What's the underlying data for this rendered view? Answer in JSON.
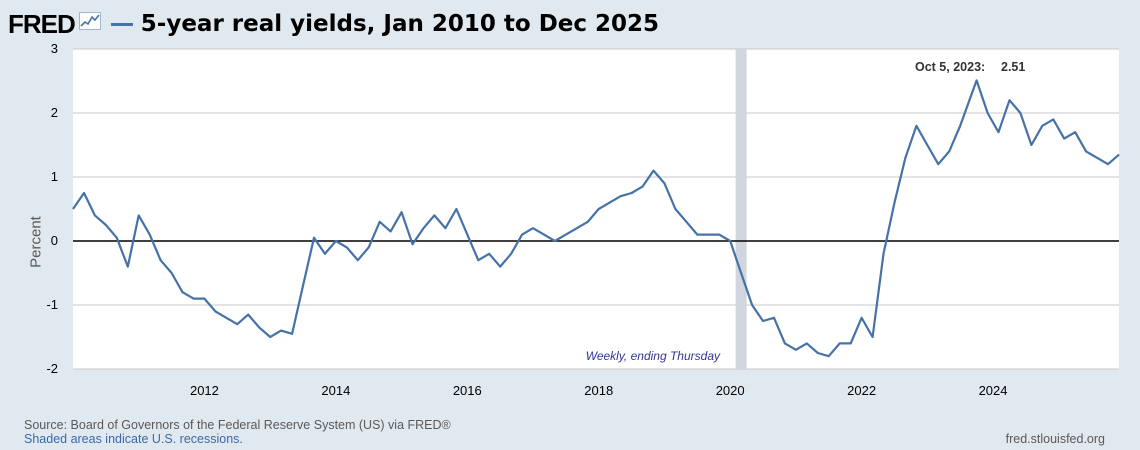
{
  "header": {
    "logo_text": "FRED",
    "title": "5-year real yields, Jan 2010 to Dec 2025"
  },
  "footer": {
    "source": "Source: Board of Governors of the Federal Reserve System (US) via FRED®",
    "recession_note": "Shaded areas indicate U.S. recessions.",
    "url": "fred.stlouisfed.org"
  },
  "colors": {
    "series": "#4572a7",
    "recession": "#cfd6de",
    "background": "#e1e9f0",
    "plot_background": "#ffffff",
    "gridline": "#c8c8c8",
    "zero_line": "#000000"
  },
  "chart_data": {
    "type": "line",
    "title": "5-year real yields, Jan 2010 to Dec 2025",
    "xlabel": "",
    "ylabel": "Percent",
    "xlim": [
      "2010-01",
      "2025-12"
    ],
    "ylim": [
      -2,
      3
    ],
    "x_ticks": [
      "2012",
      "2014",
      "2016",
      "2018",
      "2020",
      "2022",
      "2024"
    ],
    "y_ticks": [
      "-2",
      "-1",
      "0",
      "1",
      "2",
      "3"
    ],
    "grid": "horizontal",
    "recessions": [
      {
        "start": "2020-02",
        "end": "2020-04"
      }
    ],
    "frequency_note": "Weekly, ending Thursday",
    "annotation": {
      "date": "Oct 5, 2023:",
      "value": "2.51"
    },
    "series": [
      {
        "x": [
          "2010-01",
          "2010-03",
          "2010-05",
          "2010-07",
          "2010-09",
          "2010-11",
          "2011-01",
          "2011-03",
          "2011-05",
          "2011-07",
          "2011-09",
          "2011-11",
          "2012-01",
          "2012-03",
          "2012-05",
          "2012-07",
          "2012-09",
          "2012-11",
          "2013-01",
          "2013-03",
          "2013-05",
          "2013-07",
          "2013-09",
          "2013-11",
          "2014-01",
          "2014-03",
          "2014-05",
          "2014-07",
          "2014-09",
          "2014-11",
          "2015-01",
          "2015-03",
          "2015-05",
          "2015-07",
          "2015-09",
          "2015-11",
          "2016-01",
          "2016-03",
          "2016-05",
          "2016-07",
          "2016-09",
          "2016-11",
          "2017-01",
          "2017-03",
          "2017-05",
          "2017-07",
          "2017-09",
          "2017-11",
          "2018-01",
          "2018-03",
          "2018-05",
          "2018-07",
          "2018-09",
          "2018-11",
          "2019-01",
          "2019-03",
          "2019-05",
          "2019-07",
          "2019-09",
          "2019-11",
          "2020-01",
          "2020-03",
          "2020-05",
          "2020-07",
          "2020-09",
          "2020-11",
          "2021-01",
          "2021-03",
          "2021-05",
          "2021-07",
          "2021-09",
          "2021-11",
          "2022-01",
          "2022-03",
          "2022-05",
          "2022-07",
          "2022-09",
          "2022-11",
          "2023-01",
          "2023-03",
          "2023-05",
          "2023-07",
          "2023-10",
          "2023-12",
          "2024-02",
          "2024-04",
          "2024-06",
          "2024-08",
          "2024-10",
          "2024-12",
          "2025-02",
          "2025-04",
          "2025-06",
          "2025-08",
          "2025-10",
          "2025-12"
        ],
        "values": [
          0.5,
          0.75,
          0.4,
          0.25,
          0.05,
          -0.4,
          0.4,
          0.1,
          -0.3,
          -0.5,
          -0.8,
          -0.9,
          -0.9,
          -1.1,
          -1.2,
          -1.3,
          -1.15,
          -1.35,
          -1.5,
          -1.4,
          -1.45,
          -0.7,
          0.05,
          -0.2,
          0.0,
          -0.1,
          -0.3,
          -0.1,
          0.3,
          0.15,
          0.45,
          -0.05,
          0.2,
          0.4,
          0.2,
          0.5,
          0.1,
          -0.3,
          -0.2,
          -0.4,
          -0.2,
          0.1,
          0.2,
          0.1,
          0.0,
          0.1,
          0.2,
          0.3,
          0.5,
          0.6,
          0.7,
          0.75,
          0.85,
          1.1,
          0.9,
          0.5,
          0.3,
          0.1,
          0.1,
          0.1,
          0.0,
          -0.5,
          -1.0,
          -1.25,
          -1.2,
          -1.6,
          -1.7,
          -1.6,
          -1.75,
          -1.8,
          -1.6,
          -1.6,
          -1.2,
          -1.5,
          -0.2,
          0.6,
          1.3,
          1.8,
          1.5,
          1.2,
          1.4,
          1.8,
          2.51,
          2.0,
          1.7,
          2.2,
          2.0,
          1.5,
          1.8,
          1.9,
          1.6,
          1.7,
          1.4,
          1.3,
          1.2,
          1.35
        ]
      }
    ]
  }
}
